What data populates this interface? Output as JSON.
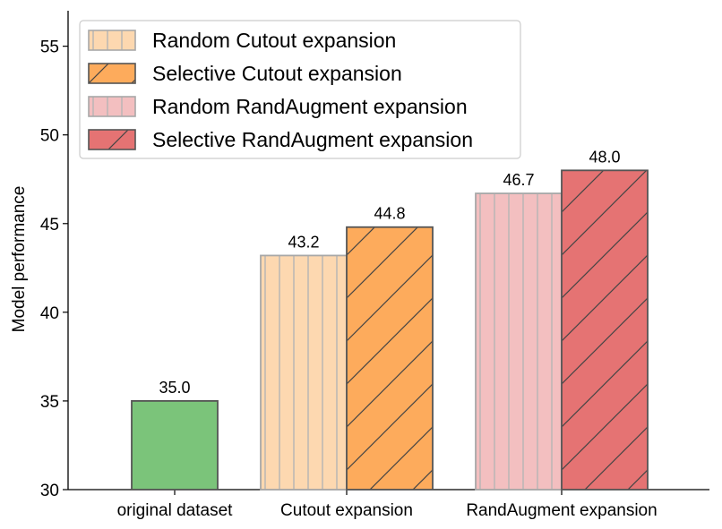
{
  "chart_data": {
    "type": "bar",
    "ylabel": "Model performance",
    "ylim": [
      30,
      57
    ],
    "yticks": [
      30,
      35,
      40,
      45,
      50,
      55
    ],
    "categories": [
      "original dataset",
      "Cutout expansion",
      "RandAugment expansion"
    ],
    "bars": [
      {
        "category": 0,
        "slot": "center",
        "value": 35.0,
        "label": "35.0",
        "color": "#7bc47a",
        "hatch": "none",
        "series": null
      },
      {
        "category": 1,
        "slot": "left",
        "value": 43.2,
        "label": "43.2",
        "color": "#fdd8b0",
        "hatch": "vertical",
        "series": 0
      },
      {
        "category": 1,
        "slot": "right",
        "value": 44.8,
        "label": "44.8",
        "color": "#fdab5c",
        "hatch": "diagonal",
        "series": 1
      },
      {
        "category": 2,
        "slot": "left",
        "value": 46.7,
        "label": "46.7",
        "color": "#f3bfc0",
        "hatch": "vertical",
        "series": 2
      },
      {
        "category": 2,
        "slot": "right",
        "value": 48.0,
        "label": "48.0",
        "color": "#e57373",
        "hatch": "diagonal",
        "series": 3
      }
    ],
    "series": [
      {
        "name": "Random Cutout expansion",
        "color": "#fdd8b0",
        "hatch": "vertical"
      },
      {
        "name": "Selective Cutout expansion",
        "color": "#fdab5c",
        "hatch": "diagonal"
      },
      {
        "name": "Random RandAugment expansion",
        "color": "#f3bfc0",
        "hatch": "vertical"
      },
      {
        "name": "Selective RandAugment expansion",
        "color": "#e57373",
        "hatch": "diagonal"
      }
    ],
    "legend": "top-left",
    "grid": false
  }
}
